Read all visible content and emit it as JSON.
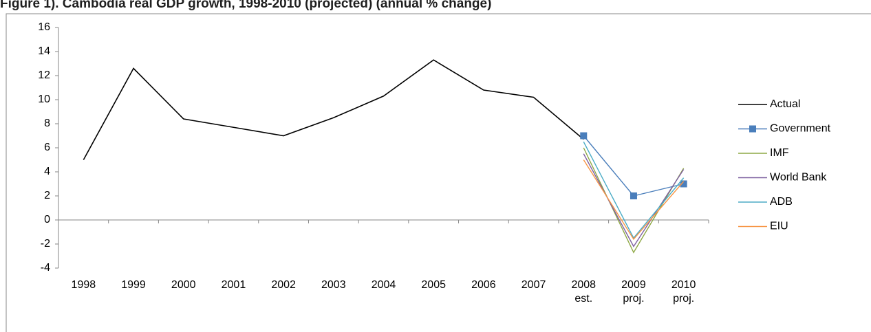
{
  "chart_data": {
    "type": "line",
    "title": "Figure 1). Cambodia real GDP growth, 1998-2010 (projected) (annual % change)",
    "categories": [
      "1998",
      "1999",
      "2000",
      "2001",
      "2002",
      "2003",
      "2004",
      "2005",
      "2006",
      "2007",
      "2008\nest.",
      "2009\nproj.",
      "2010\nproj."
    ],
    "series": [
      {
        "name": "Actual",
        "color": "#000000",
        "values": [
          5.0,
          12.6,
          8.4,
          7.7,
          7.0,
          8.5,
          10.3,
          13.3,
          10.8,
          10.2,
          6.7,
          null,
          null
        ]
      },
      {
        "name": "Government",
        "color": "#4a7ebb",
        "marker": "square",
        "values": [
          null,
          null,
          null,
          null,
          null,
          null,
          null,
          null,
          null,
          null,
          7.0,
          2.0,
          3.0
        ]
      },
      {
        "name": "IMF",
        "color": "#8ea845",
        "values": [
          null,
          null,
          null,
          null,
          null,
          null,
          null,
          null,
          null,
          null,
          6.0,
          -2.7,
          4.3
        ]
      },
      {
        "name": "World Bank",
        "color": "#7d60a0",
        "values": [
          null,
          null,
          null,
          null,
          null,
          null,
          null,
          null,
          null,
          null,
          5.5,
          -2.2,
          4.2
        ]
      },
      {
        "name": "ADB",
        "color": "#4bacc6",
        "values": [
          null,
          null,
          null,
          null,
          null,
          null,
          null,
          null,
          null,
          null,
          6.5,
          -1.5,
          3.5
        ]
      },
      {
        "name": "EIU",
        "color": "#f79646",
        "values": [
          null,
          null,
          null,
          null,
          null,
          null,
          null,
          null,
          null,
          null,
          5.0,
          -1.6,
          3.2
        ]
      }
    ],
    "ylim": [
      -4,
      16
    ],
    "yticks": [
      -4,
      -2,
      0,
      2,
      4,
      6,
      8,
      10,
      12,
      14,
      16
    ],
    "grid": false,
    "legend": "right"
  }
}
